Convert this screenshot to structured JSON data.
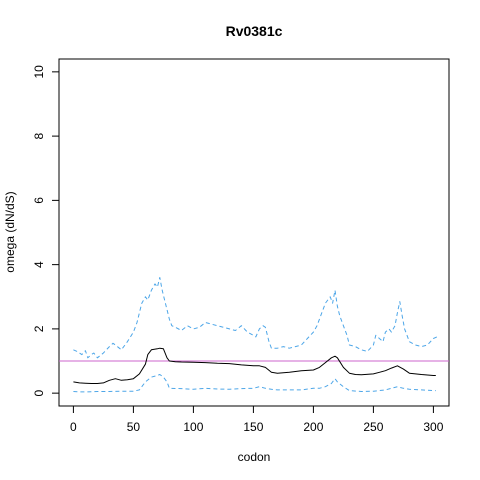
{
  "chart_data": {
    "type": "line",
    "title": "Rv0381c",
    "xlabel": "codon",
    "ylabel": "omega (dN/dS)",
    "xlim": [
      -12,
      313
    ],
    "ylim": [
      -0.4,
      10.4
    ],
    "xticks": [
      0,
      50,
      100,
      150,
      200,
      250,
      300
    ],
    "yticks": [
      0,
      2,
      4,
      6,
      8,
      10
    ],
    "grid": false,
    "legend": "none",
    "reference_line": {
      "y": 1,
      "color": "#cc66cc"
    },
    "series": [
      {
        "role": "mean",
        "color": "#000000",
        "style": "solid",
        "x": [
          0,
          5,
          10,
          15,
          20,
          25,
          30,
          35,
          40,
          45,
          50,
          55,
          60,
          62,
          65,
          70,
          72,
          75,
          78,
          80,
          85,
          90,
          100,
          110,
          120,
          130,
          140,
          150,
          155,
          160,
          165,
          170,
          180,
          190,
          200,
          205,
          210,
          215,
          218,
          220,
          225,
          230,
          235,
          240,
          250,
          255,
          260,
          265,
          270,
          275,
          280,
          290,
          300,
          302
        ],
        "y": [
          0.35,
          0.32,
          0.31,
          0.3,
          0.3,
          0.32,
          0.4,
          0.45,
          0.4,
          0.42,
          0.45,
          0.6,
          0.9,
          1.2,
          1.35,
          1.38,
          1.4,
          1.38,
          1.1,
          1.0,
          0.98,
          0.97,
          0.96,
          0.95,
          0.93,
          0.92,
          0.88,
          0.85,
          0.85,
          0.8,
          0.65,
          0.62,
          0.65,
          0.7,
          0.72,
          0.8,
          0.95,
          1.1,
          1.15,
          1.1,
          0.8,
          0.62,
          0.58,
          0.57,
          0.6,
          0.65,
          0.7,
          0.78,
          0.85,
          0.75,
          0.62,
          0.58,
          0.55,
          0.55
        ]
      },
      {
        "role": "upper bound",
        "color": "#4da6e8",
        "style": "dashed",
        "x": [
          0,
          3,
          5,
          7,
          10,
          12,
          15,
          17,
          20,
          25,
          30,
          33,
          35,
          40,
          45,
          50,
          53,
          55,
          57,
          60,
          62,
          65,
          68,
          70,
          72,
          74,
          76,
          78,
          80,
          82,
          85,
          90,
          95,
          100,
          105,
          110,
          115,
          120,
          125,
          130,
          135,
          140,
          145,
          150,
          152,
          155,
          158,
          160,
          163,
          165,
          170,
          175,
          180,
          185,
          190,
          195,
          200,
          203,
          205,
          208,
          210,
          212,
          214,
          216,
          218,
          220,
          222,
          225,
          228,
          230,
          235,
          240,
          245,
          250,
          252,
          255,
          258,
          260,
          263,
          265,
          268,
          270,
          272,
          274,
          276,
          280,
          285,
          290,
          295,
          300,
          303
        ],
        "y": [
          1.35,
          1.3,
          1.25,
          1.2,
          1.32,
          1.1,
          1.2,
          1.25,
          1.1,
          1.25,
          1.45,
          1.55,
          1.5,
          1.35,
          1.6,
          1.9,
          2.2,
          2.5,
          2.8,
          3.0,
          2.9,
          3.2,
          3.4,
          3.3,
          3.6,
          3.2,
          2.9,
          2.6,
          2.3,
          2.1,
          2.05,
          1.95,
          2.1,
          2.0,
          2.05,
          2.2,
          2.15,
          2.1,
          2.05,
          2.0,
          1.95,
          2.1,
          1.9,
          1.8,
          1.75,
          2.0,
          2.1,
          2.05,
          1.6,
          1.4,
          1.4,
          1.45,
          1.4,
          1.45,
          1.5,
          1.7,
          1.9,
          2.1,
          2.3,
          2.6,
          2.8,
          2.9,
          3.0,
          2.8,
          3.2,
          2.7,
          2.4,
          2.1,
          1.8,
          1.5,
          1.45,
          1.35,
          1.3,
          1.5,
          1.8,
          1.7,
          1.6,
          1.9,
          2.0,
          1.9,
          2.1,
          2.5,
          2.85,
          2.4,
          2.0,
          1.6,
          1.5,
          1.45,
          1.5,
          1.7,
          1.75
        ]
      },
      {
        "role": "lower bound",
        "color": "#4da6e8",
        "style": "dashed",
        "x": [
          0,
          5,
          10,
          20,
          30,
          40,
          50,
          55,
          60,
          65,
          70,
          72,
          75,
          78,
          80,
          90,
          100,
          110,
          120,
          130,
          140,
          150,
          155,
          160,
          165,
          170,
          180,
          190,
          200,
          205,
          210,
          215,
          218,
          220,
          225,
          230,
          240,
          250,
          255,
          260,
          265,
          270,
          275,
          280,
          290,
          300,
          302
        ],
        "y": [
          0.05,
          0.04,
          0.04,
          0.05,
          0.05,
          0.06,
          0.06,
          0.1,
          0.35,
          0.5,
          0.55,
          0.58,
          0.5,
          0.35,
          0.15,
          0.14,
          0.12,
          0.15,
          0.13,
          0.12,
          0.14,
          0.15,
          0.2,
          0.15,
          0.12,
          0.1,
          0.1,
          0.1,
          0.15,
          0.15,
          0.2,
          0.3,
          0.45,
          0.35,
          0.2,
          0.08,
          0.05,
          0.06,
          0.08,
          0.1,
          0.15,
          0.2,
          0.15,
          0.12,
          0.1,
          0.08,
          0.08
        ]
      }
    ]
  }
}
